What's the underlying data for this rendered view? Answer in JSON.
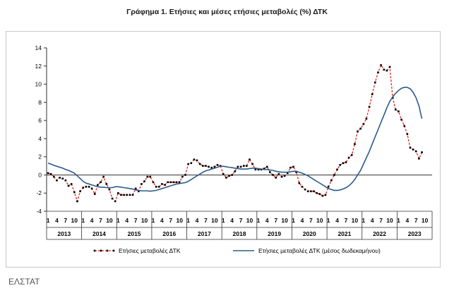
{
  "title": "Γράφημα 1. Ετήσιες και μέσες ετήσιες μεταβολές (%) ΔΤΚ",
  "source": "ΕΛΣΤΑΤ",
  "chart_data": {
    "type": "line",
    "title": "Γράφημα 1. Ετήσιες και μέσες ετήσιες μεταβολές (%) ΔΤΚ",
    "ylim": [
      -4,
      14
    ],
    "yticks": [
      -4,
      -2,
      0,
      2,
      4,
      6,
      8,
      10,
      12,
      14
    ],
    "grid": false,
    "legend_position": "bottom",
    "month_tick_labels": [
      "1",
      "4",
      "7",
      "10"
    ],
    "years": [
      "2013",
      "2014",
      "2015",
      "2016",
      "2017",
      "2018",
      "2019",
      "2020",
      "2021",
      "2022",
      "2023"
    ],
    "x_start": "2013-01",
    "x_end": "2023-07",
    "series": [
      {
        "name": "Ετήσιες μεταβολές ΔΤΚ",
        "color": "#e8241c",
        "style": "dashed-markers",
        "values": [
          0.2,
          0.1,
          -0.2,
          -0.6,
          -0.3,
          -0.4,
          -0.6,
          -1.2,
          -1.0,
          -1.9,
          -2.9,
          -1.8,
          -1.4,
          -1.3,
          -1.3,
          -1.5,
          -2.1,
          -1.1,
          -0.8,
          -0.2,
          -1.0,
          -1.6,
          -2.6,
          -2.9,
          -2.0,
          -2.2,
          -2.2,
          -2.2,
          -2.2,
          -2.2,
          -1.5,
          -1.8,
          -1.0,
          -0.7,
          -0.2,
          -0.2,
          -0.8,
          -1.3,
          -1.3,
          -1.0,
          -1.1,
          -0.8,
          -0.8,
          -0.8,
          -0.8,
          -0.8,
          -0.2,
          0.0,
          1.2,
          1.3,
          1.7,
          1.6,
          1.2,
          1.0,
          1.0,
          0.9,
          0.8,
          0.9,
          1.1,
          1.0,
          0.1,
          -0.3,
          -0.1,
          0.0,
          0.4,
          0.9,
          0.9,
          1.0,
          1.0,
          1.7,
          1.2,
          0.6,
          0.6,
          0.6,
          0.7,
          0.9,
          0.3,
          0.0,
          -0.3,
          0.1,
          -0.2,
          -0.1,
          0.2,
          0.8,
          0.9,
          0.3,
          -0.9,
          -1.3,
          -1.6,
          -1.8,
          -1.8,
          -1.8,
          -2.0,
          -2.1,
          -2.3,
          -2.2,
          -1.3,
          -0.6,
          0.0,
          0.6,
          1.1,
          1.3,
          1.4,
          1.9,
          2.2,
          3.4,
          4.8,
          5.1,
          5.6,
          6.2,
          7.5,
          8.9,
          10.2,
          11.3,
          12.1,
          11.6,
          11.5,
          11.9,
          8.5,
          7.2,
          7.0,
          6.1,
          5.4,
          4.5,
          3.0,
          2.8,
          2.6,
          1.8,
          2.5
        ]
      },
      {
        "name": "Ετήσιες μεταβολές ΔΤΚ (μέσος δωδεκαμήνου)",
        "color": "#2c5a8c",
        "style": "solid",
        "values": [
          1.3,
          1.2,
          1.05,
          0.95,
          0.85,
          0.75,
          0.6,
          0.5,
          0.35,
          0.2,
          -0.1,
          -0.4,
          -0.7,
          -0.9,
          -1.0,
          -1.1,
          -1.2,
          -1.3,
          -1.35,
          -1.35,
          -1.4,
          -1.4,
          -1.4,
          -1.3,
          -1.3,
          -1.35,
          -1.4,
          -1.45,
          -1.5,
          -1.55,
          -1.65,
          -1.7,
          -1.75,
          -1.75,
          -1.75,
          -1.8,
          -1.75,
          -1.7,
          -1.6,
          -1.5,
          -1.4,
          -1.3,
          -1.2,
          -1.1,
          -1.0,
          -0.95,
          -0.9,
          -0.85,
          -0.7,
          -0.5,
          -0.3,
          -0.1,
          0.1,
          0.3,
          0.45,
          0.55,
          0.65,
          0.75,
          0.85,
          0.95,
          0.95,
          0.9,
          0.85,
          0.8,
          0.75,
          0.7,
          0.65,
          0.65,
          0.65,
          0.7,
          0.75,
          0.75,
          0.7,
          0.65,
          0.6,
          0.6,
          0.55,
          0.5,
          0.4,
          0.35,
          0.3,
          0.3,
          0.3,
          0.35,
          0.4,
          0.4,
          0.3,
          0.2,
          0.05,
          -0.1,
          -0.3,
          -0.5,
          -0.7,
          -0.9,
          -1.1,
          -1.3,
          -1.5,
          -1.6,
          -1.7,
          -1.7,
          -1.65,
          -1.55,
          -1.4,
          -1.2,
          -0.9,
          -0.5,
          0.0,
          0.5,
          1.2,
          1.9,
          2.6,
          3.4,
          4.2,
          5.0,
          5.8,
          6.6,
          7.4,
          8.1,
          8.6,
          9.0,
          9.3,
          9.55,
          9.65,
          9.65,
          9.5,
          9.1,
          8.5,
          7.6,
          6.2
        ]
      }
    ]
  }
}
